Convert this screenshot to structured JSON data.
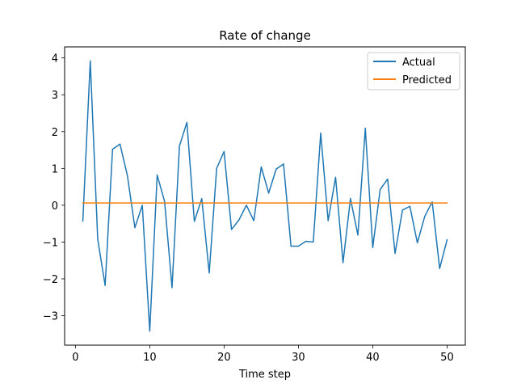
{
  "chart_data": {
    "type": "line",
    "title": "Rate of change",
    "xlabel": "Time step",
    "ylabel": "",
    "xlim": [
      -1.45,
      52.45
    ],
    "ylim": [
      -3.8,
      4.3
    ],
    "xticks": [
      0,
      10,
      20,
      30,
      40,
      50
    ],
    "yticks": [
      -3,
      -2,
      -1,
      0,
      1,
      2,
      3,
      4
    ],
    "ytick_labels": [
      "−3",
      "−2",
      "−1",
      "0",
      "1",
      "2",
      "3",
      "4"
    ],
    "grid": false,
    "legend_position": "top-right",
    "x": [
      1,
      2,
      3,
      4,
      5,
      6,
      7,
      8,
      9,
      10,
      11,
      12,
      13,
      14,
      15,
      16,
      17,
      18,
      19,
      20,
      21,
      22,
      23,
      24,
      25,
      26,
      27,
      28,
      29,
      30,
      31,
      32,
      33,
      34,
      35,
      36,
      37,
      38,
      39,
      40,
      41,
      42,
      43,
      44,
      45,
      46,
      47,
      48,
      49,
      50
    ],
    "series": [
      {
        "name": "Actual",
        "color": "#1f77b4",
        "values": [
          -0.43,
          3.92,
          -0.92,
          -2.18,
          1.52,
          1.66,
          0.8,
          -0.61,
          0.0,
          -3.42,
          0.82,
          0.1,
          -2.24,
          1.61,
          2.25,
          -0.44,
          0.18,
          -1.84,
          1.0,
          1.46,
          -0.66,
          -0.4,
          0.0,
          -0.42,
          1.04,
          0.33,
          0.98,
          1.12,
          -1.11,
          -1.11,
          -0.98,
          -1.0,
          1.96,
          -0.42,
          0.76,
          -1.56,
          0.18,
          -0.81,
          2.09,
          -1.15,
          0.43,
          0.71,
          -1.31,
          -0.13,
          -0.03,
          -1.02,
          -0.3,
          0.09,
          -1.72,
          -0.94
        ]
      },
      {
        "name": "Predicted",
        "color": "#ff7f0e",
        "values": [
          0.06,
          0.06,
          0.06,
          0.06,
          0.06,
          0.06,
          0.06,
          0.06,
          0.06,
          0.06,
          0.06,
          0.06,
          0.06,
          0.06,
          0.06,
          0.06,
          0.06,
          0.06,
          0.06,
          0.06,
          0.06,
          0.06,
          0.06,
          0.06,
          0.06,
          0.06,
          0.06,
          0.06,
          0.06,
          0.06,
          0.06,
          0.06,
          0.06,
          0.06,
          0.06,
          0.06,
          0.06,
          0.06,
          0.06,
          0.06,
          0.06,
          0.06,
          0.06,
          0.06,
          0.06,
          0.06,
          0.06,
          0.06,
          0.06,
          0.06
        ]
      }
    ]
  }
}
